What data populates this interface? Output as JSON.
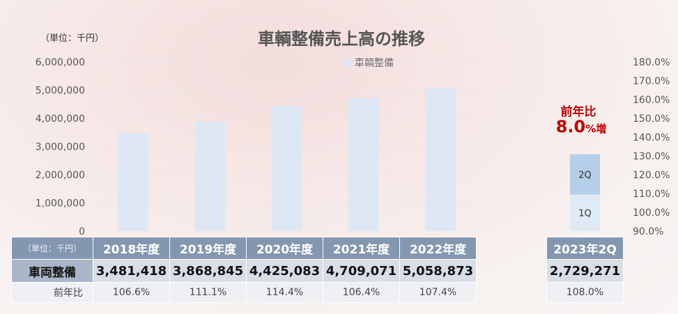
{
  "unit_label": "（単位：千円）",
  "chart_data": {
    "type": "bar",
    "title": "車輌整備売上高の推移",
    "categories": [
      "2018年度",
      "2019年度",
      "2020年度",
      "2021年度",
      "2022年度"
    ],
    "series": [
      {
        "name": "車輌整備",
        "values": [
          3481418,
          3868845,
          4425083,
          4709071,
          5058873
        ],
        "color": "#dde8f4"
      }
    ],
    "ylim": [
      0,
      6000000
    ],
    "y_ticks": [
      "0",
      "1,000,000",
      "2,000,000",
      "3,000,000",
      "4,000,000",
      "5,000,000",
      "6,000,000"
    ],
    "y2_ticks": [
      "90.0%",
      "100.0%",
      "110.0%",
      "120.0%",
      "130.0%",
      "140.0%",
      "150.0%",
      "160.0%",
      "170.0%",
      "180.0%"
    ],
    "legend": "top",
    "stacked_bar": {
      "ylim": [
        0,
        6000000
      ],
      "segments": [
        {
          "label": "1Q",
          "value": 1300000,
          "color": "#dfeaf5"
        },
        {
          "label": "2Q",
          "value": 1429271,
          "color": "#b4cfe8"
        }
      ]
    },
    "callout": {
      "label": "前年比",
      "value": "8.0",
      "suffix": "%増"
    }
  },
  "table": {
    "unit_header": "（単位：千円）",
    "row_value_label": "車両整備",
    "row_yoy_label": "前年比",
    "columns": [
      {
        "year": "2018年度",
        "value": "3,481,418",
        "yoy": "106.6%"
      },
      {
        "year": "2019年度",
        "value": "3,868,845",
        "yoy": "111.1%"
      },
      {
        "year": "2020年度",
        "value": "4,425,083",
        "yoy": "114.4%"
      },
      {
        "year": "2021年度",
        "value": "4,709,071",
        "yoy": "106.4%"
      },
      {
        "year": "2022年度",
        "value": "5,058,873",
        "yoy": "107.4%"
      }
    ],
    "quarter": {
      "header": "2023年2Q",
      "value": "2,729,271",
      "yoy": "108.0%"
    }
  },
  "colors": {
    "axis_text": "#555555",
    "header_bg": "#8497b0",
    "callout": "#c00000"
  }
}
